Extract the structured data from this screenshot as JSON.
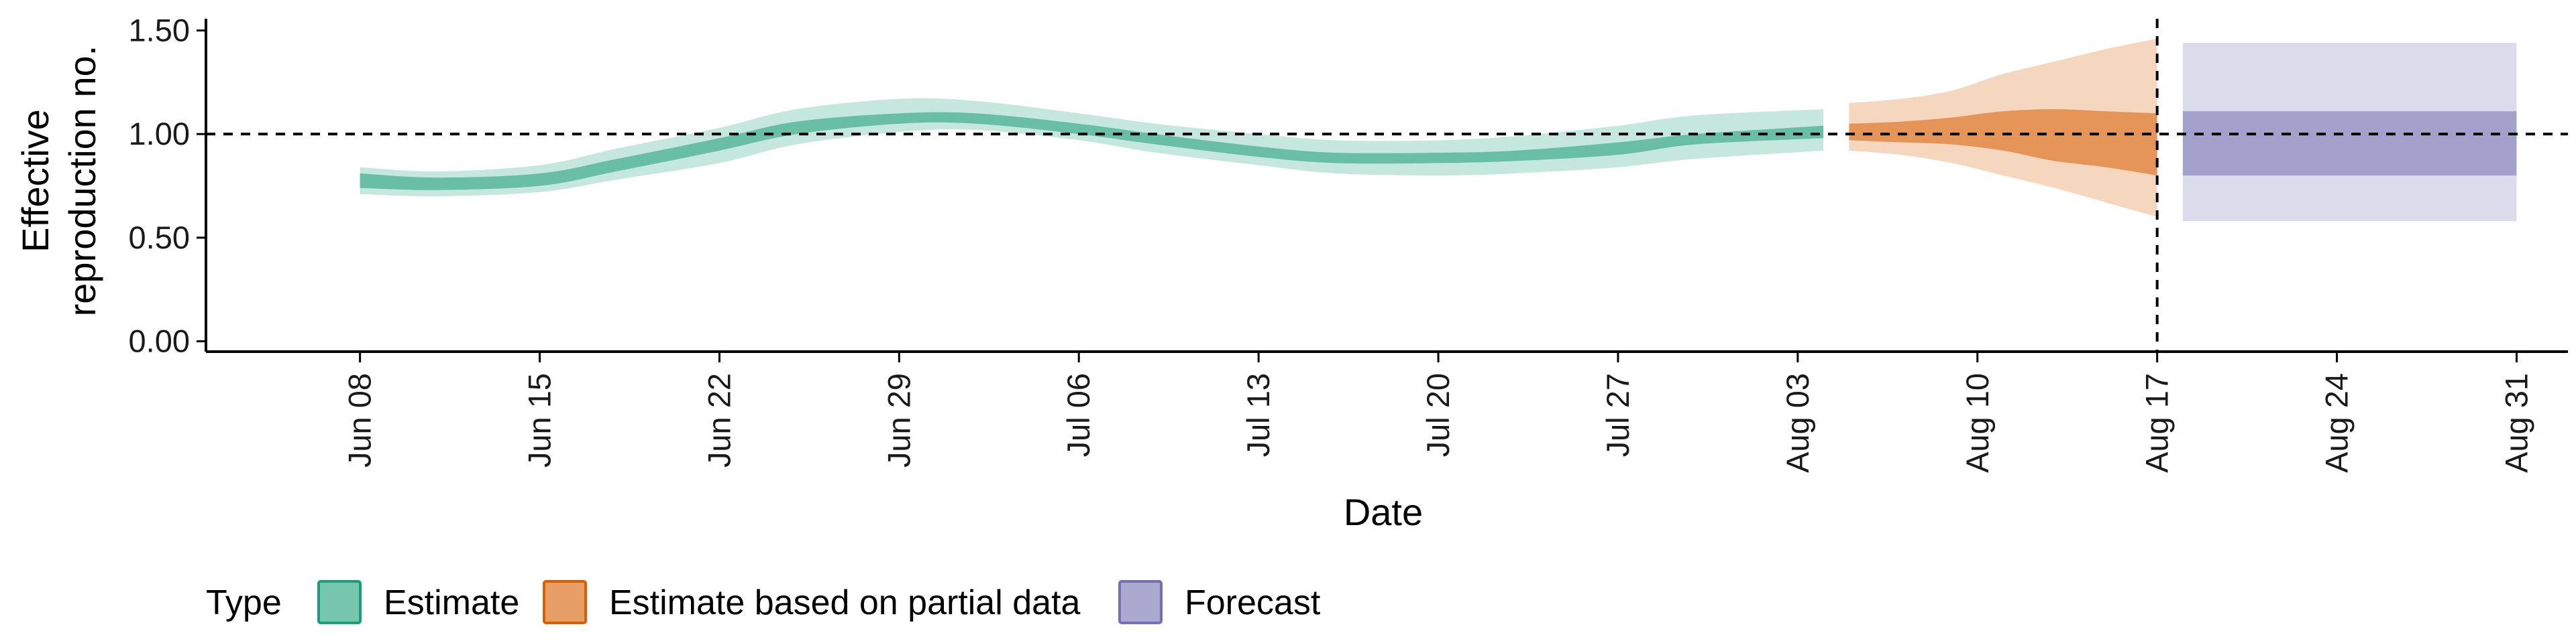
{
  "chart_data": {
    "type": "area",
    "xlabel": "Date",
    "ylabel_lines": [
      "Effective",
      "reproduction no."
    ],
    "x_range": [
      "2020-06-02",
      "2020-09-02"
    ],
    "ylim": [
      -0.05,
      1.55
    ],
    "yticks": [
      0.0,
      0.5,
      1.0,
      1.5
    ],
    "ytick_labels": [
      "0.00",
      "0.50",
      "1.00",
      "1.50"
    ],
    "xticks": [
      "2020-06-08",
      "2020-06-15",
      "2020-06-22",
      "2020-06-29",
      "2020-07-06",
      "2020-07-13",
      "2020-07-20",
      "2020-07-27",
      "2020-08-03",
      "2020-08-10",
      "2020-08-17",
      "2020-08-24",
      "2020-08-31"
    ],
    "xtick_labels": [
      "Jun 08",
      "Jun 15",
      "Jun 22",
      "Jun 29",
      "Jul 06",
      "Jul 13",
      "Jul 20",
      "Jul 27",
      "Aug 03",
      "Aug 10",
      "Aug 17",
      "Aug 24",
      "Aug 31"
    ],
    "reference_hline": 1.0,
    "reference_vline": "2020-08-17",
    "legend": {
      "title": "Type",
      "position": "bottom",
      "entries": [
        {
          "label": "Estimate",
          "color": "#1b9e77"
        },
        {
          "label": "Estimate based on partial data",
          "color": "#d95f02"
        },
        {
          "label": "Forecast",
          "color": "#7570b3"
        }
      ]
    },
    "series": [
      {
        "name": "Estimate",
        "color": "#1b9e77",
        "x": [
          "2020-06-08",
          "2020-06-11",
          "2020-06-15",
          "2020-06-18",
          "2020-06-22",
          "2020-06-25",
          "2020-06-29",
          "2020-07-02",
          "2020-07-06",
          "2020-07-09",
          "2020-07-13",
          "2020-07-16",
          "2020-07-20",
          "2020-07-23",
          "2020-07-27",
          "2020-07-30",
          "2020-08-04"
        ],
        "outer_lower": [
          0.71,
          0.7,
          0.72,
          0.78,
          0.86,
          0.95,
          1.01,
          1.02,
          0.97,
          0.91,
          0.85,
          0.81,
          0.8,
          0.81,
          0.84,
          0.88,
          0.92
        ],
        "inner_lower": [
          0.74,
          0.73,
          0.75,
          0.82,
          0.92,
          1.0,
          1.05,
          1.05,
          1.0,
          0.95,
          0.89,
          0.86,
          0.86,
          0.87,
          0.9,
          0.95,
          0.98
        ],
        "inner_upper": [
          0.81,
          0.79,
          0.81,
          0.88,
          0.98,
          1.06,
          1.1,
          1.1,
          1.05,
          1.0,
          0.94,
          0.91,
          0.91,
          0.92,
          0.96,
          1.0,
          1.04
        ],
        "outer_upper": [
          0.84,
          0.82,
          0.85,
          0.93,
          1.03,
          1.12,
          1.17,
          1.16,
          1.1,
          1.05,
          1.0,
          0.97,
          0.97,
          0.99,
          1.04,
          1.09,
          1.12
        ]
      },
      {
        "name": "Estimate based on partial data",
        "color": "#d95f02",
        "x": [
          "2020-08-05",
          "2020-08-07",
          "2020-08-09",
          "2020-08-11",
          "2020-08-13",
          "2020-08-15",
          "2020-08-17"
        ],
        "outer_lower": [
          0.92,
          0.9,
          0.86,
          0.8,
          0.74,
          0.67,
          0.6
        ],
        "inner_lower": [
          0.97,
          0.96,
          0.95,
          0.92,
          0.87,
          0.84,
          0.8
        ],
        "inner_upper": [
          1.05,
          1.06,
          1.08,
          1.11,
          1.12,
          1.11,
          1.1
        ],
        "outer_upper": [
          1.15,
          1.17,
          1.21,
          1.29,
          1.35,
          1.41,
          1.46
        ]
      },
      {
        "name": "Forecast",
        "color": "#7570b3",
        "x": [
          "2020-08-18",
          "2020-08-31"
        ],
        "outer_lower": [
          0.58,
          0.58
        ],
        "inner_lower": [
          0.8,
          0.8
        ],
        "inner_upper": [
          1.11,
          1.11
        ],
        "outer_upper": [
          1.44,
          1.44
        ]
      }
    ]
  }
}
